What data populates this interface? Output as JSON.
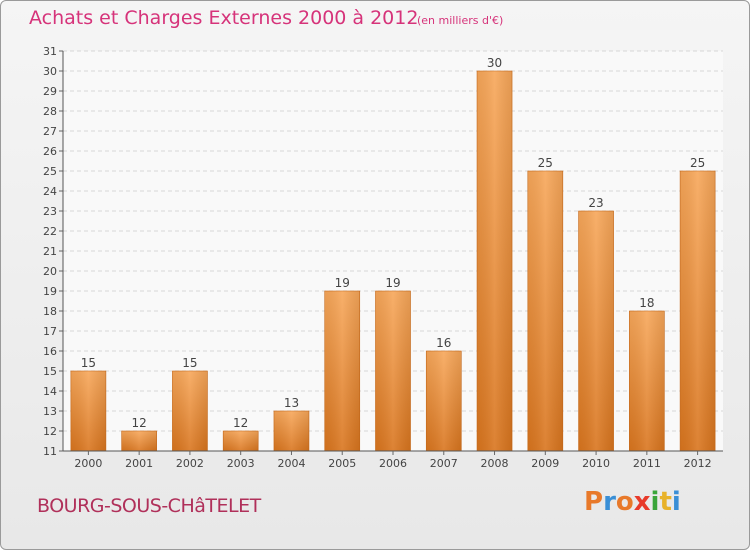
{
  "header": {
    "title": "Achats et Charges Externes 2000 à 2012",
    "unit": "(en milliers d'€)"
  },
  "footer": {
    "commune": "BOURG-SOUS-CHâTELET",
    "logo_letters": [
      "P",
      "r",
      "o",
      "x",
      "i",
      "t",
      "i"
    ],
    "logo_colors": [
      "#e8792a",
      "#3a8fd6",
      "#e8792a",
      "#e83a2a",
      "#3aa53a",
      "#e8b22a",
      "#3a8fd6"
    ]
  },
  "colors": {
    "bar_light": "#f7a75a",
    "bar_dark": "#d9751e",
    "title": "#d6337a"
  },
  "chart_data": {
    "type": "bar",
    "categories": [
      "2000",
      "2001",
      "2002",
      "2003",
      "2004",
      "2005",
      "2006",
      "2007",
      "2008",
      "2009",
      "2010",
      "2011",
      "2012"
    ],
    "values": [
      15,
      12,
      15,
      12,
      13,
      19,
      19,
      16,
      30,
      25,
      23,
      18,
      25
    ],
    "title": "Achats et Charges Externes 2000 à 2012",
    "xlabel": "",
    "ylabel": "",
    "ylim": [
      11,
      31
    ],
    "yticks": [
      11,
      12,
      13,
      14,
      15,
      16,
      17,
      18,
      19,
      20,
      21,
      22,
      23,
      24,
      25,
      26,
      27,
      28,
      29,
      30,
      31
    ],
    "grid": true,
    "data_labels": true
  }
}
